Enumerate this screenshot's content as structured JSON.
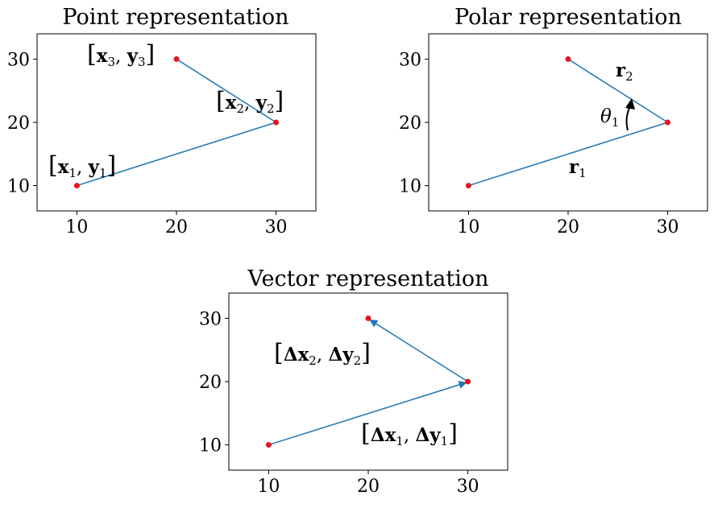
{
  "chart_data": [
    {
      "type": "line",
      "title": "Point representation",
      "x": [
        10,
        30,
        20
      ],
      "y": [
        10,
        20,
        30
      ],
      "xticks": [
        "10",
        "20",
        "30"
      ],
      "yticks": [
        "10",
        "20",
        "30"
      ],
      "xlim": [
        6,
        34
      ],
      "ylim": [
        6,
        34
      ],
      "labels": [
        {
          "parts": [
            "[",
            "x",
            "1",
            ",  ",
            "y",
            "1",
            "]"
          ]
        },
        {
          "parts": [
            "[",
            "x",
            "2",
            ",  ",
            "y",
            "2",
            "]"
          ]
        },
        {
          "parts": [
            "[",
            "x",
            "3",
            ",  ",
            "y",
            "3",
            "]"
          ]
        }
      ]
    },
    {
      "type": "line",
      "title": "Polar representation",
      "x": [
        10,
        30,
        20
      ],
      "y": [
        10,
        20,
        30
      ],
      "xticks": [
        "10",
        "20",
        "30"
      ],
      "yticks": [
        "10",
        "20",
        "30"
      ],
      "xlim": [
        6,
        34
      ],
      "ylim": [
        6,
        34
      ],
      "labels": [
        {
          "main": "r",
          "sub": "1"
        },
        {
          "main": "r",
          "sub": "2"
        },
        {
          "main": "θ",
          "sub": "1"
        }
      ]
    },
    {
      "type": "line",
      "title": "Vector representation",
      "x": [
        10,
        30,
        20
      ],
      "y": [
        10,
        20,
        30
      ],
      "xticks": [
        "10",
        "20",
        "30"
      ],
      "yticks": [
        "10",
        "20",
        "30"
      ],
      "xlim": [
        6,
        34
      ],
      "ylim": [
        6,
        34
      ],
      "labels": [
        {
          "parts": [
            "[",
            "Δx",
            "1",
            ",  ",
            "Δy",
            "1",
            "]"
          ]
        },
        {
          "parts": [
            "[",
            "Δx",
            "2",
            ",  ",
            "Δy",
            "2",
            "]"
          ]
        }
      ]
    }
  ],
  "colors": {
    "line": "#1f77b4",
    "point": "#e8131b"
  }
}
